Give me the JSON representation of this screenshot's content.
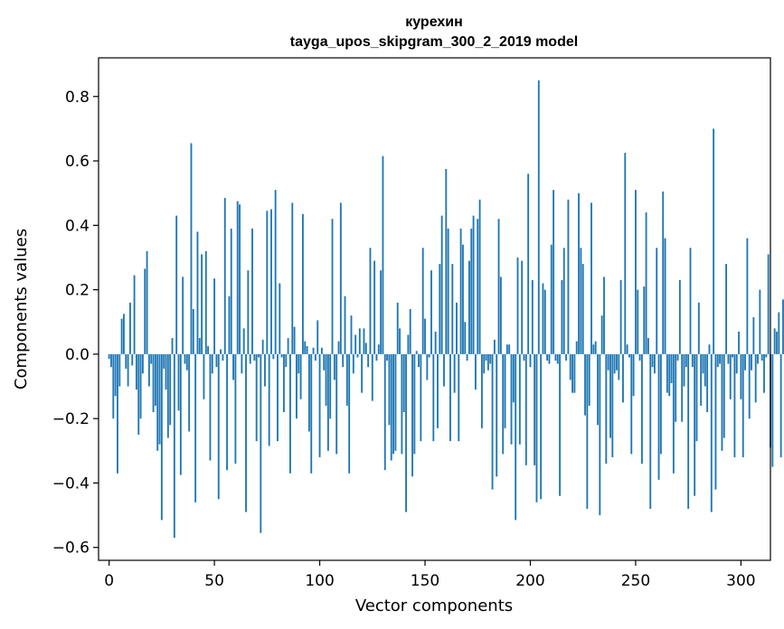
{
  "chart_data": {
    "type": "bar",
    "title": "курехин",
    "subtitle": "tayga_upos_skipgram_300_2_2019 model",
    "xlabel": "Vector components",
    "ylabel": "Components values",
    "xlim": [
      -5,
      314
    ],
    "ylim": [
      -0.64,
      0.92
    ],
    "xticks": [
      0,
      50,
      100,
      150,
      200,
      250,
      300
    ],
    "xtick_labels": [
      "0",
      "50",
      "100",
      "150",
      "200",
      "250",
      "300"
    ],
    "yticks": [
      -0.6,
      -0.4,
      -0.2,
      0.0,
      0.2,
      0.4,
      0.6,
      0.8
    ],
    "ytick_labels": [
      "−0.6",
      "−0.4",
      "−0.2",
      "0.0",
      "0.2",
      "0.4",
      "0.6",
      "0.8"
    ],
    "grid": false,
    "bar_color": "#1f77b4",
    "values": [
      -0.015,
      -0.04,
      -0.2,
      -0.13,
      -0.37,
      -0.1,
      0.11,
      0.125,
      -0.045,
      -0.1,
      0.16,
      -0.035,
      0.245,
      -0.11,
      -0.25,
      -0.2,
      -0.06,
      0.265,
      0.32,
      -0.1,
      -0.03,
      -0.18,
      -0.16,
      -0.3,
      -0.28,
      -0.515,
      -0.045,
      -0.11,
      -0.26,
      -0.22,
      0.05,
      -0.57,
      0.43,
      -0.175,
      -0.375,
      0.24,
      -0.03,
      -0.05,
      -0.24,
      0.655,
      0.14,
      -0.46,
      0.38,
      0.05,
      0.31,
      -0.14,
      0.32,
      0.025,
      -0.33,
      -0.06,
      0.235,
      -0.04,
      -0.45,
      0.015,
      -0.02,
      0.485,
      -0.36,
      0.18,
      0.39,
      -0.08,
      -0.34,
      0.475,
      0.465,
      -0.06,
      0.08,
      -0.49,
      0.26,
      -0.03,
      0.39,
      -0.02,
      -0.27,
      -0.01,
      -0.555,
      0.045,
      -0.1,
      0.445,
      -0.285,
      0.45,
      -0.015,
      0.51,
      -0.27,
      0.22,
      -0.01,
      -0.18,
      -0.04,
      0.05,
      -0.37,
      0.47,
      0.085,
      -0.2,
      -0.06,
      -0.14,
      0.435,
      0.04,
      0.025,
      -0.24,
      -0.37,
      0.02,
      -0.02,
      0.105,
      -0.32,
      0.02,
      -0.05,
      -0.16,
      -0.3,
      -0.2,
      0.42,
      -0.08,
      -0.31,
      0.04,
      0.47,
      -0.04,
      0.18,
      -0.16,
      -0.37,
      0.12,
      -0.06,
      0.06,
      -0.01,
      0.08,
      -0.12,
      0.08,
      0.035,
      -0.04,
      0.33,
      -0.145,
      0.29,
      -0.02,
      0.03,
      0.26,
      0.615,
      -0.36,
      -0.02,
      -0.22,
      -0.33,
      -0.31,
      -0.3,
      0.16,
      0.08,
      -0.31,
      -0.18,
      -0.49,
      0.06,
      0.14,
      -0.38,
      -0.31,
      0.01,
      -0.04,
      -0.27,
      0.33,
      0.11,
      -0.08,
      -0.01,
      0.26,
      -0.27,
      0.07,
      -0.23,
      0.28,
      0.43,
      -0.1,
      0.575,
      0.39,
      -0.27,
      0.28,
      -0.12,
      0.16,
      -0.27,
      0.39,
      0.34,
      0.1,
      -0.02,
      0.29,
      0.39,
      0.43,
      -0.11,
      0.42,
      0.48,
      -0.23,
      -0.06,
      -0.02,
      -0.05,
      -0.03,
      -0.42,
      0.045,
      -0.38,
      0.42,
      0.24,
      -0.31,
      -0.23,
      0.03,
      0.03,
      -0.28,
      -0.15,
      -0.515,
      0.3,
      -0.28,
      0.29,
      -0.02,
      -0.345,
      0.56,
      -0.04,
      0.23,
      -0.345,
      -0.46,
      0.85,
      -0.45,
      0.22,
      0.2,
      -0.02,
      -0.03,
      0.34,
      0.51,
      -0.02,
      -0.03,
      -0.44,
      0.23,
      0.33,
      -0.02,
      0.48,
      -0.08,
      -0.12,
      -0.12,
      0.04,
      0.5,
      0.33,
      0.28,
      -0.19,
      -0.48,
      -0.16,
      0.47,
      0.03,
      0.04,
      -0.22,
      -0.5,
      0.12,
      0.24,
      -0.34,
      -0.05,
      -0.26,
      -0.32,
      -0.06,
      -0.05,
      -0.08,
      0.23,
      -0.15,
      0.625,
      0.03,
      -0.01,
      -0.31,
      -0.13,
      0.51,
      0.2,
      -0.02,
      -0.34,
      0.21,
      0.44,
      0.05,
      -0.48,
      -0.04,
      -0.06,
      0.33,
      -0.39,
      -0.31,
      0.505,
      0.36,
      -0.12,
      -0.13,
      -0.09,
      -0.37,
      -0.21,
      -0.02,
      0.23,
      -0.21,
      -0.1,
      -0.04,
      -0.48,
      0.33,
      -0.04,
      -0.44,
      -0.27,
      0.16,
      -0.16,
      -0.06,
      -0.1,
      -0.18,
      0.03,
      -0.49,
      0.7,
      -0.42,
      -0.04,
      -0.03,
      -0.3,
      -0.26,
      0.28,
      -0.03,
      -0.14,
      -0.01,
      -0.32,
      -0.06,
      0.07,
      -0.14,
      -0.32,
      -0.05,
      0.36,
      -0.2,
      -0.05,
      0.115,
      -0.15,
      -0.03,
      0.2,
      -0.02,
      -0.12,
      -0.01,
      0.31,
      -0.29,
      -0.35,
      0.08,
      0.07,
      0.13,
      -0.32,
      0.17,
      -0.22
    ]
  }
}
